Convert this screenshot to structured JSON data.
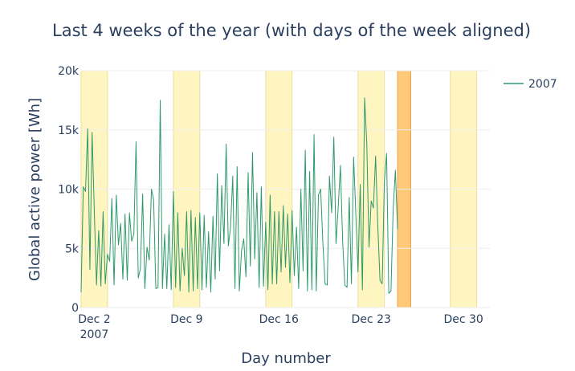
{
  "chart_data": {
    "type": "line",
    "title": "Last 4 weeks of the year (with days of the week aligned)",
    "xlabel": "Day number",
    "ylabel": "Global active power [Wh]",
    "xlim": [
      "2007-12-01",
      "2008-01-01"
    ],
    "ylim": [
      0,
      20000
    ],
    "y_ticks": [
      0,
      5000,
      10000,
      15000,
      20000
    ],
    "y_tick_labels": [
      "0",
      "5k",
      "10k",
      "15k",
      "20k"
    ],
    "x_ticks": [
      "2007-12-02",
      "2007-12-09",
      "2007-12-16",
      "2007-12-23",
      "2007-12-30"
    ],
    "x_tick_labels": [
      "Dec 2",
      "Dec 9",
      "Dec 16",
      "Dec 23",
      "Dec 30"
    ],
    "x_tick_year_label": "2007",
    "grid": true,
    "legend": {
      "placement": "top-right",
      "entries": [
        "2007"
      ]
    },
    "colors": {
      "series": "#2e9a6c",
      "weekend_band": "#fff5c0",
      "holiday_band": "#ffc97a"
    },
    "shaded_regions": [
      {
        "kind": "weekend",
        "start": "2007-12-01",
        "end": "2007-12-03"
      },
      {
        "kind": "weekend",
        "start": "2007-12-08",
        "end": "2007-12-10"
      },
      {
        "kind": "weekend",
        "start": "2007-12-15",
        "end": "2007-12-17"
      },
      {
        "kind": "weekend",
        "start": "2007-12-22",
        "end": "2007-12-24"
      },
      {
        "kind": "holiday",
        "start": "2007-12-25",
        "end": "2007-12-26"
      },
      {
        "kind": "weekend",
        "start": "2007-12-29",
        "end": "2007-12-31"
      }
    ],
    "series": [
      {
        "name": "2007",
        "x_start": "2007-12-01T00:00",
        "x_step_hours": 4,
        "values": [
          1300,
          10200,
          9800,
          15100,
          3200,
          14800,
          8200,
          1900,
          6500,
          1800,
          8100,
          2000,
          4500,
          3900,
          9200,
          1900,
          9500,
          5300,
          7100,
          2400,
          7900,
          2300,
          8000,
          5600,
          6200,
          14000,
          2500,
          3300,
          9600,
          1600,
          5100,
          4000,
          10000,
          9100,
          1600,
          1700,
          17500,
          1600,
          6200,
          1600,
          7000,
          1500,
          9800,
          1700,
          8000,
          1400,
          5000,
          2700,
          8100,
          1300,
          8200,
          1400,
          7600,
          1600,
          8000,
          1500,
          7800,
          1700,
          6400,
          1300,
          7700,
          2400,
          11300,
          3100,
          10300,
          5400,
          13800,
          5200,
          6800,
          11100,
          1600,
          11900,
          1400,
          4800,
          5800,
          2600,
          11400,
          3500,
          13100,
          4100,
          9700,
          1700,
          10200,
          1800,
          7200,
          1500,
          9500,
          2000,
          8100,
          2000,
          8100,
          3000,
          8600,
          3400,
          7900,
          2100,
          8200,
          2700,
          6800,
          1600,
          10000,
          3100,
          13300,
          1400,
          11500,
          1500,
          14600,
          1400,
          9500,
          10000,
          5500,
          2000,
          1900,
          11100,
          8000,
          14400,
          5400,
          8500,
          12000,
          5600,
          1900,
          1700,
          9300,
          2000,
          12700,
          7900,
          3000,
          10400,
          1500,
          17700,
          13800,
          5100,
          9000,
          8400,
          12800,
          6900,
          2300,
          2000,
          10700,
          13000,
          1200,
          1400,
          8300,
          11600,
          6600
        ]
      }
    ]
  }
}
